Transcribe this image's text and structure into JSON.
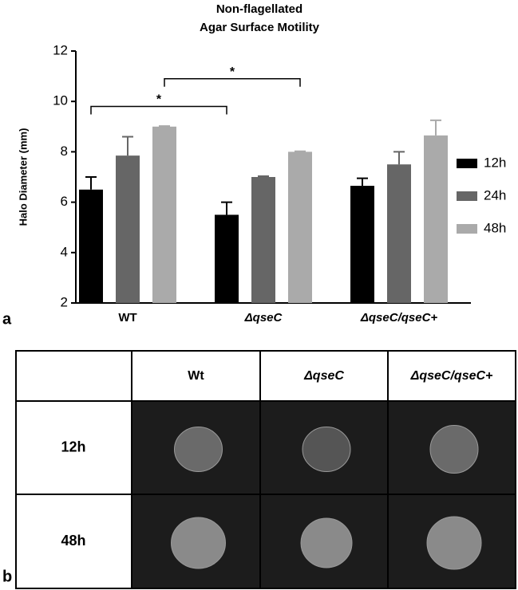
{
  "chart_data": {
    "type": "bar",
    "title": [
      "Non-flagellated",
      "Agar Surface Motility"
    ],
    "y_label": "Halo Diameter (mm)",
    "categories": [
      "WT",
      "ΔqseC",
      "ΔqseC/qseC+"
    ],
    "series": [
      {
        "name": "12h",
        "color": "#000000",
        "values": [
          6.5,
          5.5,
          6.65
        ],
        "errors": [
          0.5,
          0.5,
          0.3
        ]
      },
      {
        "name": "24h",
        "color": "#666666",
        "values": [
          7.85,
          7.0,
          7.5
        ],
        "errors": [
          0.75,
          0.03,
          0.5
        ]
      },
      {
        "name": "48h",
        "color": "#aaaaaa",
        "values": [
          9.0,
          8.0,
          8.65
        ],
        "errors": [
          0.02,
          0.02,
          0.6
        ]
      }
    ],
    "ylim": [
      2,
      12
    ],
    "yticks": [
      2,
      4,
      6,
      8,
      10,
      12
    ],
    "legend": "right",
    "annotations": [
      "*",
      "*"
    ]
  },
  "panel_labels": [
    "a",
    "b"
  ],
  "table": {
    "columns": [
      "Wt",
      "ΔqseC",
      "ΔqseC/qseC+"
    ],
    "rows": [
      "12h",
      "48h"
    ]
  }
}
